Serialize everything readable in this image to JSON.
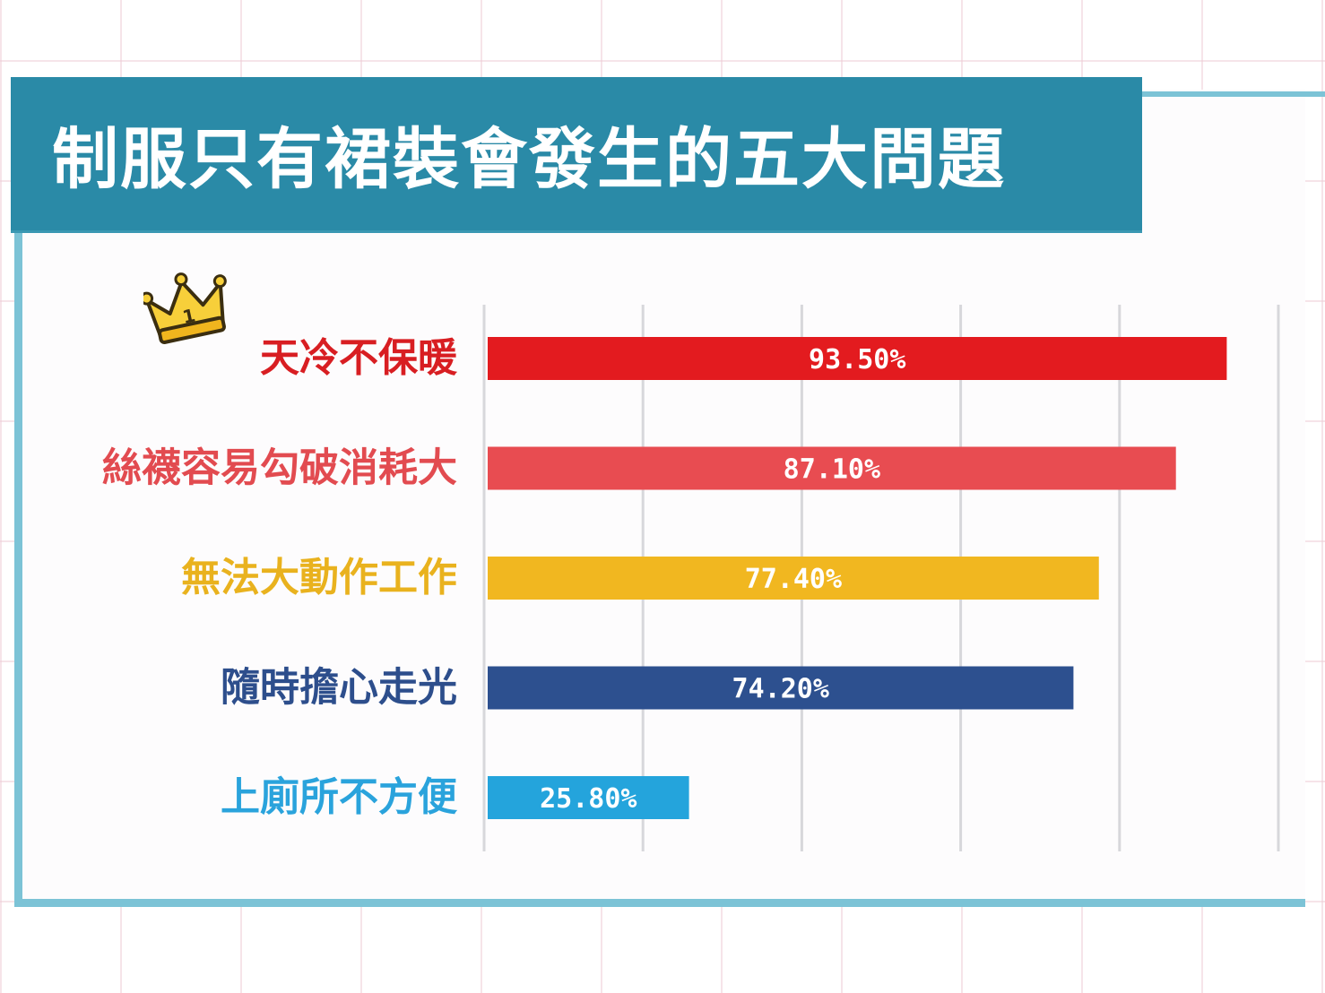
{
  "title": "制服只有裙裝會發生的五大問題",
  "icons": {
    "rank": "crown-icon",
    "rank_text": "1"
  },
  "chart_data": {
    "type": "bar",
    "orientation": "horizontal",
    "title": "制服只有裙裝會發生的五大問題",
    "categories": [
      "天冷不保暖",
      "絲襪容易勾破消耗大",
      "無法大動作工作",
      "隨時擔心走光",
      "上廁所不方便"
    ],
    "values": [
      93.5,
      87.1,
      77.4,
      74.2,
      25.8
    ],
    "value_labels": [
      "93.50%",
      "87.10%",
      "77.40%",
      "74.20%",
      "25.80%"
    ],
    "unit": "%",
    "xlim": [
      0,
      100
    ],
    "grid": true,
    "colors": [
      "#e31b1f",
      "#e84c51",
      "#f1b720",
      "#2d508f",
      "#24a4dc"
    ],
    "label_colors": [
      "#d81e22",
      "#e24b50",
      "#e9b21e",
      "#2d4e8c",
      "#2aa3dc"
    ]
  }
}
